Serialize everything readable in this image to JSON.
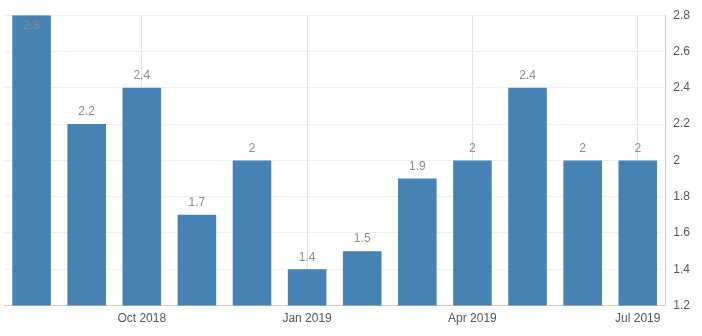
{
  "chart_data": {
    "type": "bar",
    "categories": [
      null,
      null,
      "Oct 2018",
      null,
      null,
      "Jan 2019",
      null,
      null,
      "Apr 2019",
      null,
      null,
      "Jul 2019"
    ],
    "values": [
      2.8,
      2.2,
      2.4,
      1.7,
      2,
      1.4,
      1.5,
      1.9,
      2,
      2.4,
      2,
      2
    ],
    "color": "#4682b4",
    "ylim": [
      1.2,
      2.8
    ],
    "yticks": [
      1.2,
      1.4,
      1.6,
      1.8,
      2,
      2.2,
      2.4,
      2.6,
      2.8
    ],
    "grid": true,
    "data_labels": true
  }
}
